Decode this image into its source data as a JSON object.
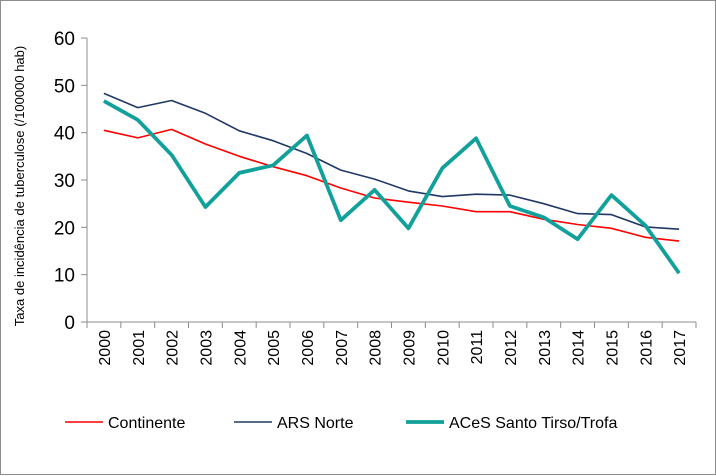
{
  "chart_data": {
    "type": "line",
    "title": "",
    "xlabel": "",
    "ylabel": "Taxa de incidência de tuberculose (/100000 hab)",
    "categories": [
      "2000",
      "2001",
      "2002",
      "2003",
      "2004",
      "2005",
      "2006",
      "2007",
      "2008",
      "2009",
      "2010",
      "2011",
      "2012",
      "2013",
      "2014",
      "2015",
      "2016",
      "2017"
    ],
    "ylim": [
      0,
      60
    ],
    "yticks": [
      0,
      10,
      20,
      30,
      40,
      50,
      60
    ],
    "grid": false,
    "legend_position": "bottom",
    "series": [
      {
        "name": "Continente",
        "color": "#ff0000",
        "values": [
          40.5,
          38.9,
          40.7,
          37.6,
          35.0,
          32.8,
          30.9,
          28.3,
          26.2,
          25.3,
          24.5,
          23.3,
          23.3,
          21.7,
          20.6,
          19.8,
          17.9,
          17.1
        ]
      },
      {
        "name": "ARS Norte",
        "color": "#1f3864",
        "values": [
          48.3,
          45.3,
          46.8,
          44.1,
          40.4,
          38.3,
          35.6,
          32.1,
          30.2,
          27.7,
          26.5,
          27.0,
          26.8,
          25.0,
          22.9,
          22.7,
          20.1,
          19.6
        ]
      },
      {
        "name": "ACeS Santo Tirso/Trofa",
        "color": "#12a09a",
        "values": [
          46.7,
          42.7,
          35.3,
          24.3,
          31.5,
          33.1,
          39.4,
          21.5,
          27.9,
          19.8,
          32.5,
          38.8,
          24.5,
          22.1,
          17.5,
          26.8,
          20.4,
          10.3
        ]
      }
    ]
  }
}
